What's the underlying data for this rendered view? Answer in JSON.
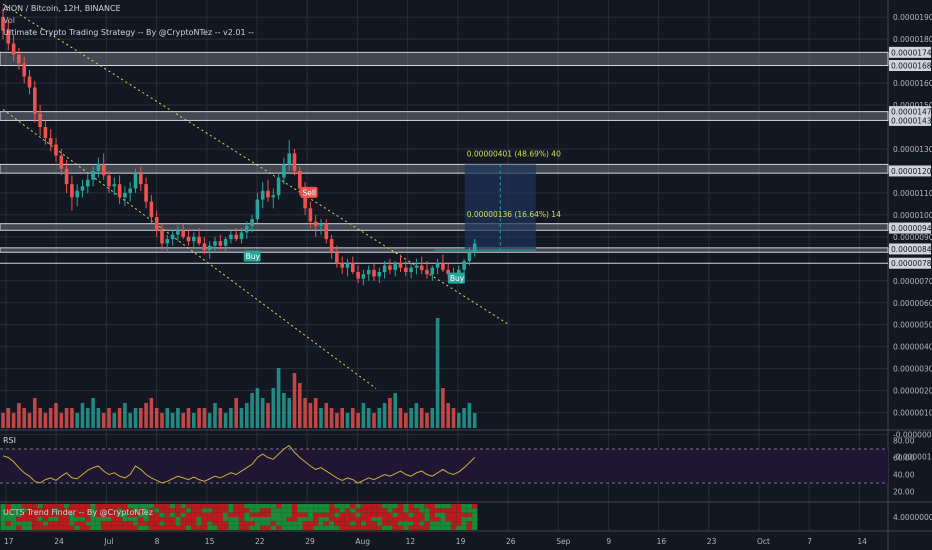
{
  "header": {
    "symbol_line": "AION / Bitcoin, 12H, BINANCE",
    "volume_label": "Vol",
    "strategy_label": "Ultimate Crypto Trading Strategy -- By @CryptoNTez -- v2.01 --",
    "rsi_label": "RSI",
    "trend_label": "UCTS Trend Finder -- By @CryptoNTez"
  },
  "colors": {
    "background": "#131722",
    "up": "#26a69a",
    "down": "#ef5350",
    "grid": "#2a2e39",
    "trendline": "#d4e157",
    "band_fill": "#9aa0aa",
    "rsi_line": "#c9b037",
    "rsi_fill": "#1e1633",
    "target_box": "#1c3459",
    "buy_tag": "#26a69a",
    "sell_tag": "#ef5350",
    "text": "#b2b5be"
  },
  "chart_data": {
    "type": "candlestick",
    "price_axis": {
      "ticks": [
        "0.00001900",
        "0.00001800",
        "0.00001600",
        "0.00001500",
        "0.00001300",
        "0.00001100",
        "0.00001000",
        "0.00000900",
        "0.00000700",
        "0.00000600",
        "0.00000500",
        "0.00000400",
        "0.00000300",
        "0.00000200",
        "0.00000100",
        "-0.00000000",
        "-0.00000100"
      ],
      "tick_values": [
        1.9e-05,
        1.8e-05,
        1.6e-05,
        1.5e-05,
        1.3e-05,
        1.1e-05,
        1e-05,
        9e-06,
        7e-06,
        6e-06,
        5e-06,
        4e-06,
        3e-06,
        2e-06,
        1e-06,
        0,
        -1e-06
      ],
      "range": [
        3e-07,
        1.96e-05
      ],
      "level_tags": [
        "0.00001740",
        "0.00001680",
        "0.00001470",
        "0.00001430",
        "0.00001200",
        "0.00000940",
        "0.00000845",
        "0.00000780"
      ],
      "level_values": [
        1.74e-05,
        1.68e-05,
        1.47e-05,
        1.43e-05,
        1.2e-05,
        9.4e-06,
        8.45e-06,
        7.8e-06
      ]
    },
    "rsi_axis": {
      "ticks": [
        "80.00",
        "60.00",
        "40.00",
        "20.00"
      ],
      "tick_values": [
        80,
        60,
        40,
        20
      ],
      "range": [
        10,
        90
      ],
      "bands": [
        70,
        30
      ]
    },
    "trend_axis": {
      "ticks": [
        "4.00000000"
      ]
    },
    "time_axis": [
      "17",
      "24",
      "Jul",
      "8",
      "15",
      "22",
      "29",
      "Aug",
      "12",
      "19",
      "26",
      "Sep",
      "9",
      "16",
      "23",
      "Oct",
      "7",
      "14"
    ],
    "support_bands": [
      [
        1.68e-05,
        1.74e-05
      ],
      [
        1.43e-05,
        1.47e-05
      ],
      [
        1.19e-05,
        1.23e-05
      ],
      [
        9.3e-06,
        9.6e-06
      ],
      [
        8.3e-06,
        8.5e-06
      ]
    ],
    "single_lines": [
      7.8e-06
    ],
    "trendlines": [
      {
        "from": [
          0.0,
          1.96e-05
        ],
        "to": [
          0.57,
          5e-06
        ]
      },
      {
        "from": [
          0.0,
          1.48e-05
        ],
        "to": [
          0.42,
          2.1e-06
        ]
      }
    ],
    "target_box": {
      "from": 0.52,
      "to": 0.6,
      "high": 1.23e-05,
      "low": 8.4e-06,
      "labels": [
        "0.00000401 (48.69%) 40",
        "0.00000136 (16.64%) 14"
      ]
    },
    "signals": [
      {
        "label": "Sell",
        "x": 0.344,
        "price": 1.1e-05,
        "kind": "sell"
      },
      {
        "label": "Buy",
        "x": 0.28,
        "price": 8.1e-06,
        "kind": "buy"
      },
      {
        "label": "Buy",
        "x": 0.51,
        "price": 7.1e-06,
        "kind": "buy"
      }
    ],
    "candles": [
      [
        19.0,
        19.4,
        18.0,
        18.4
      ],
      [
        18.4,
        18.9,
        17.5,
        17.8
      ],
      [
        17.8,
        18.2,
        17.0,
        17.3
      ],
      [
        17.3,
        17.6,
        16.6,
        16.9
      ],
      [
        16.9,
        17.2,
        16.0,
        16.3
      ],
      [
        16.3,
        16.6,
        15.5,
        15.8
      ],
      [
        15.8,
        16.1,
        14.2,
        14.6
      ],
      [
        14.6,
        15.0,
        13.6,
        14.0
      ],
      [
        14.0,
        14.3,
        13.2,
        13.5
      ],
      [
        13.5,
        13.9,
        12.9,
        13.2
      ],
      [
        13.2,
        13.5,
        12.4,
        12.7
      ],
      [
        12.7,
        13.0,
        11.8,
        12.1
      ],
      [
        12.1,
        12.5,
        11.0,
        11.4
      ],
      [
        11.4,
        11.8,
        10.2,
        10.8
      ],
      [
        10.8,
        11.4,
        10.4,
        11.1
      ],
      [
        11.1,
        11.6,
        10.8,
        11.3
      ],
      [
        11.3,
        11.9,
        11.0,
        11.6
      ],
      [
        11.6,
        12.2,
        11.3,
        12.0
      ],
      [
        12.0,
        12.6,
        11.7,
        12.3
      ],
      [
        12.3,
        12.8,
        11.6,
        11.8
      ],
      [
        11.8,
        12.0,
        11.0,
        11.3
      ],
      [
        11.3,
        11.7,
        10.9,
        11.4
      ],
      [
        11.4,
        11.8,
        10.5,
        10.8
      ],
      [
        10.8,
        11.3,
        10.4,
        11.0
      ],
      [
        11.0,
        11.5,
        10.6,
        11.2
      ],
      [
        11.2,
        12.1,
        11.0,
        11.9
      ],
      [
        11.9,
        12.2,
        11.1,
        11.4
      ],
      [
        11.4,
        11.7,
        10.3,
        10.6
      ],
      [
        10.6,
        10.9,
        9.6,
        9.9
      ],
      [
        9.9,
        10.2,
        9.0,
        9.3
      ],
      [
        9.3,
        9.6,
        8.4,
        8.7
      ],
      [
        8.7,
        9.1,
        8.3,
        8.9
      ],
      [
        8.9,
        9.3,
        8.6,
        9.1
      ],
      [
        9.1,
        9.5,
        8.8,
        9.3
      ],
      [
        9.3,
        9.6,
        8.9,
        9.0
      ],
      [
        9.0,
        9.3,
        8.6,
        8.8
      ],
      [
        8.8,
        9.2,
        8.5,
        9.0
      ],
      [
        9.0,
        9.4,
        8.6,
        8.7
      ],
      [
        8.7,
        9.0,
        8.2,
        8.4
      ],
      [
        8.4,
        8.8,
        8.0,
        8.6
      ],
      [
        8.6,
        9.0,
        8.3,
        8.8
      ],
      [
        8.8,
        9.1,
        8.4,
        8.6
      ],
      [
        8.6,
        9.0,
        8.3,
        8.9
      ],
      [
        8.9,
        9.3,
        8.7,
        9.1
      ],
      [
        9.1,
        9.4,
        8.8,
        8.9
      ],
      [
        8.9,
        9.4,
        8.7,
        9.2
      ],
      [
        9.2,
        9.7,
        8.9,
        9.5
      ],
      [
        9.5,
        10.0,
        9.2,
        9.8
      ],
      [
        9.8,
        11.0,
        9.6,
        10.7
      ],
      [
        10.7,
        11.5,
        10.3,
        11.1
      ],
      [
        11.1,
        11.6,
        10.6,
        10.8
      ],
      [
        10.8,
        11.2,
        10.3,
        10.9
      ],
      [
        10.9,
        11.9,
        10.7,
        11.7
      ],
      [
        11.7,
        12.6,
        11.4,
        12.3
      ],
      [
        12.3,
        13.4,
        12.0,
        12.8
      ],
      [
        12.8,
        13.0,
        11.8,
        12.0
      ],
      [
        12.0,
        12.2,
        10.9,
        11.2
      ],
      [
        11.2,
        11.5,
        10.0,
        10.3
      ],
      [
        10.3,
        10.6,
        9.4,
        9.7
      ],
      [
        9.7,
        10.0,
        9.0,
        9.5
      ],
      [
        9.5,
        9.8,
        9.1,
        9.6
      ],
      [
        9.6,
        9.8,
        8.7,
        8.9
      ],
      [
        8.9,
        9.1,
        8.0,
        8.3
      ],
      [
        8.3,
        8.6,
        7.6,
        7.8
      ],
      [
        7.8,
        8.1,
        7.3,
        7.6
      ],
      [
        7.6,
        8.0,
        7.2,
        7.8
      ],
      [
        7.8,
        8.1,
        7.3,
        7.4
      ],
      [
        7.4,
        7.7,
        6.9,
        7.1
      ],
      [
        7.1,
        7.5,
        6.8,
        7.3
      ],
      [
        7.3,
        7.7,
        7.0,
        7.5
      ],
      [
        7.5,
        7.8,
        7.0,
        7.2
      ],
      [
        7.2,
        7.6,
        6.9,
        7.4
      ],
      [
        7.4,
        7.9,
        7.1,
        7.7
      ],
      [
        7.7,
        8.0,
        7.3,
        7.5
      ],
      [
        7.5,
        7.9,
        7.2,
        7.8
      ],
      [
        7.8,
        8.2,
        7.4,
        7.6
      ],
      [
        7.6,
        7.9,
        7.2,
        7.4
      ],
      [
        7.4,
        7.8,
        7.1,
        7.6
      ],
      [
        7.6,
        8.0,
        7.3,
        7.7
      ],
      [
        7.7,
        8.1,
        7.3,
        7.5
      ],
      [
        7.5,
        7.9,
        7.1,
        7.3
      ],
      [
        7.3,
        7.7,
        7.0,
        7.6
      ],
      [
        7.6,
        8.0,
        7.3,
        7.8
      ],
      [
        7.8,
        8.2,
        7.4,
        7.5
      ],
      [
        7.5,
        7.8,
        7.1,
        7.3
      ],
      [
        7.3,
        7.6,
        7.0,
        7.2
      ],
      [
        7.2,
        7.7,
        7.0,
        7.5
      ],
      [
        7.5,
        8.0,
        7.3,
        7.9
      ],
      [
        7.9,
        8.5,
        7.7,
        8.3
      ],
      [
        8.3,
        8.9,
        8.1,
        8.7
      ]
    ],
    "volume": [
      3,
      4,
      3,
      5,
      4,
      3,
      6,
      4,
      3,
      4,
      5,
      3,
      4,
      4,
      3,
      5,
      4,
      6,
      4,
      3,
      4,
      3,
      4,
      5,
      3,
      4,
      4,
      5,
      6,
      4,
      3,
      4,
      3,
      4,
      3,
      4,
      3,
      4,
      4,
      3,
      5,
      4,
      3,
      4,
      6,
      4,
      5,
      7,
      8,
      6,
      5,
      8,
      12,
      7,
      6,
      11,
      9,
      6,
      5,
      6,
      4,
      5,
      4,
      3,
      4,
      3,
      4,
      3,
      5,
      4,
      3,
      4,
      5,
      6,
      7,
      4,
      3,
      4,
      5,
      4,
      3,
      4,
      22,
      8,
      5,
      4,
      3,
      4,
      5,
      3
    ],
    "rsi": [
      62,
      60,
      55,
      48,
      42,
      38,
      32,
      30,
      34,
      36,
      33,
      38,
      42,
      36,
      35,
      40,
      45,
      48,
      50,
      44,
      40,
      42,
      38,
      36,
      40,
      50,
      46,
      40,
      36,
      33,
      30,
      32,
      35,
      38,
      36,
      34,
      37,
      34,
      32,
      35,
      38,
      36,
      39,
      42,
      40,
      44,
      48,
      52,
      60,
      64,
      60,
      58,
      64,
      70,
      74,
      66,
      60,
      55,
      50,
      46,
      48,
      44,
      40,
      36,
      33,
      36,
      34,
      30,
      33,
      36,
      34,
      37,
      40,
      38,
      41,
      44,
      40,
      38,
      42,
      44,
      40,
      38,
      42,
      46,
      42,
      40,
      43,
      48,
      54,
      60
    ]
  }
}
